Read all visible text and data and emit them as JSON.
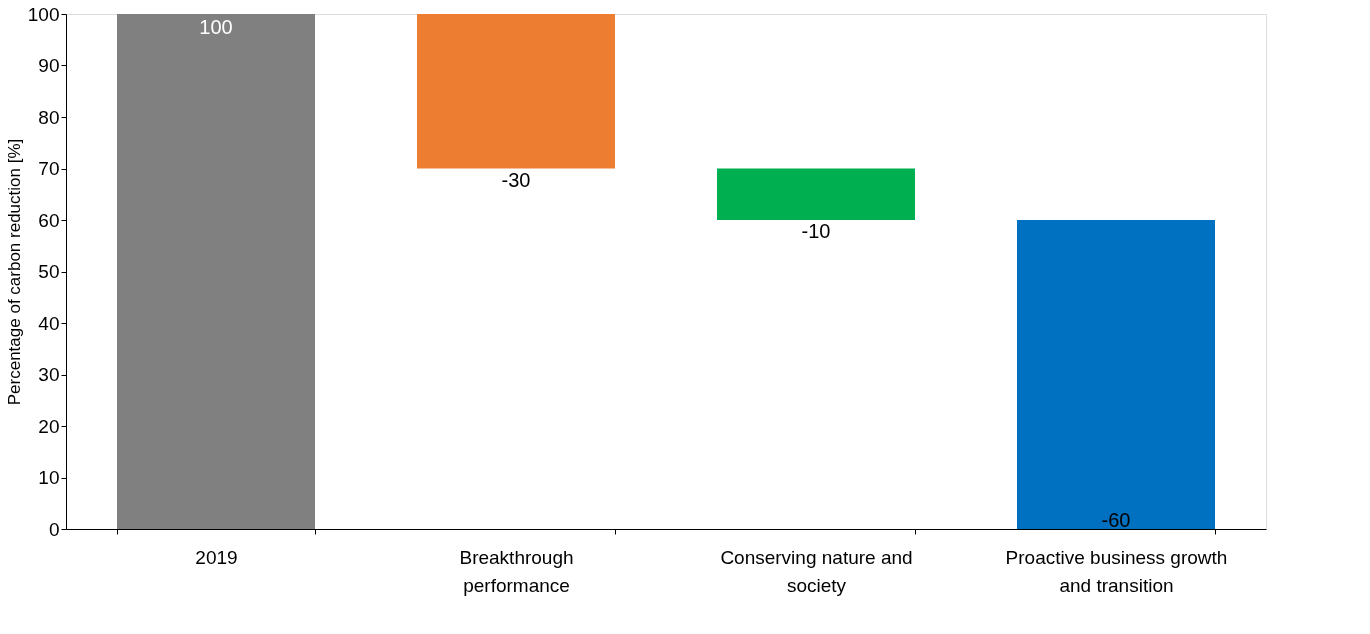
{
  "chart_data": {
    "type": "bar",
    "ylabel": "Percentage of carbon reduction [%]",
    "categories": [
      "2019",
      "Breakthrough performance",
      "Conserving nature and society",
      "Proactive business growth and transition"
    ],
    "values": [
      100,
      -30,
      -10,
      -60
    ],
    "base": [
      0,
      100,
      70,
      60
    ],
    "colors": [
      "#808080",
      "#ed7d31",
      "#00b050",
      "#0070c0"
    ],
    "ylim": [
      0,
      100
    ],
    "yticks": [
      0,
      10,
      20,
      30,
      40,
      50,
      60,
      70,
      80,
      90,
      100
    ],
    "data_labels": true,
    "grid": false
  }
}
